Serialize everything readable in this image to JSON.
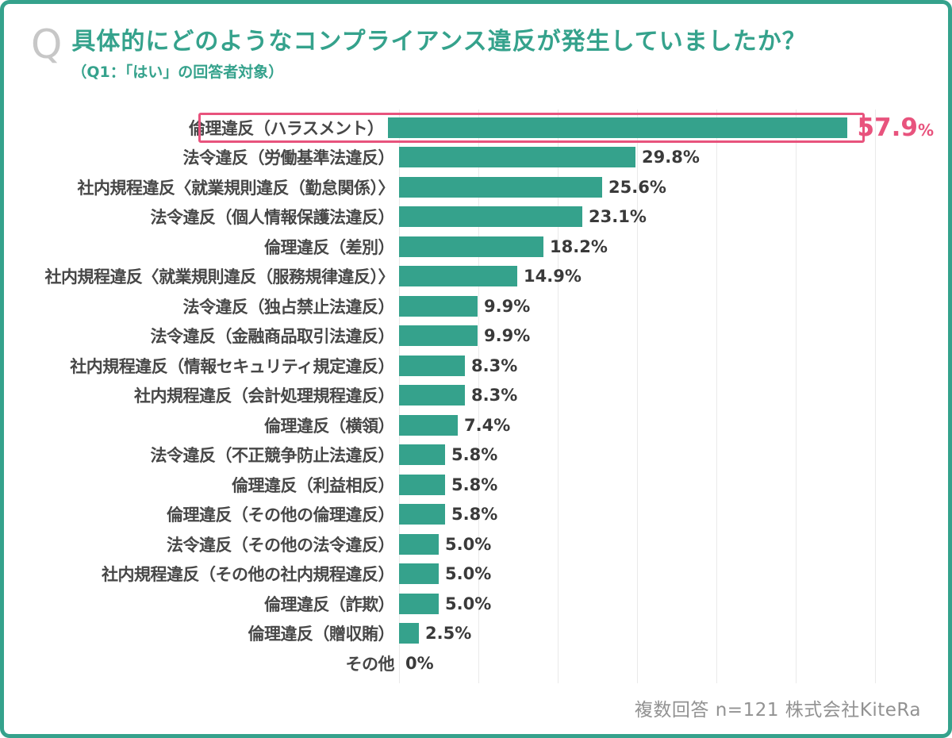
{
  "header": {
    "q_icon": "Q",
    "title": "具体的にどのようなコンプライアンス違反が発生していましたか？",
    "subtitle": "（Q1：「はい」の回答者対象）"
  },
  "chart_data": {
    "type": "bar",
    "orientation": "horizontal",
    "unit": "%",
    "xlim": [
      0,
      70
    ],
    "gridline_interval": 10,
    "grid": true,
    "bar_color": "#35a28c",
    "highlight_color": "#e8537d",
    "highlight_index": 0,
    "categories": [
      "倫理違反（ハラスメント）",
      "法令違反（労働基準法違反）",
      "社内規程違反〈就業規則違反（勤怠関係）〉",
      "法令違反（個人情報保護法違反）",
      "倫理違反（差別）",
      "社内規程違反〈就業規則違反（服務規律違反）〉",
      "法令違反（独占禁止法違反）",
      "法令違反（金融商品取引法違反）",
      "社内規程違反（情報セキュリティ規定違反）",
      "社内規程違反（会計処理規程違反）",
      "倫理違反（横領）",
      "法令違反（不正競争防止法違反）",
      "倫理違反（利益相反）",
      "倫理違反（その他の倫理違反）",
      "法令違反（その他の法令違反）",
      "社内規程違反（その他の社内規程違反）",
      "倫理違反（詐欺）",
      "倫理違反（贈収賄）",
      "その他"
    ],
    "values": [
      57.9,
      29.8,
      25.6,
      23.1,
      18.2,
      14.9,
      9.9,
      9.9,
      8.3,
      8.3,
      7.4,
      5.8,
      5.8,
      5.8,
      5.0,
      5.0,
      5.0,
      2.5,
      0
    ],
    "value_labels": [
      "57.9%",
      "29.8%",
      "25.6%",
      "23.1%",
      "18.2%",
      "14.9%",
      "9.9%",
      "9.9%",
      "8.3%",
      "8.3%",
      "7.4%",
      "5.8%",
      "5.8%",
      "5.8%",
      "5.0%",
      "5.0%",
      "5.0%",
      "2.5%",
      "0%"
    ]
  },
  "footer": {
    "note": "複数回答 n=121  株式会社KiteRa"
  }
}
